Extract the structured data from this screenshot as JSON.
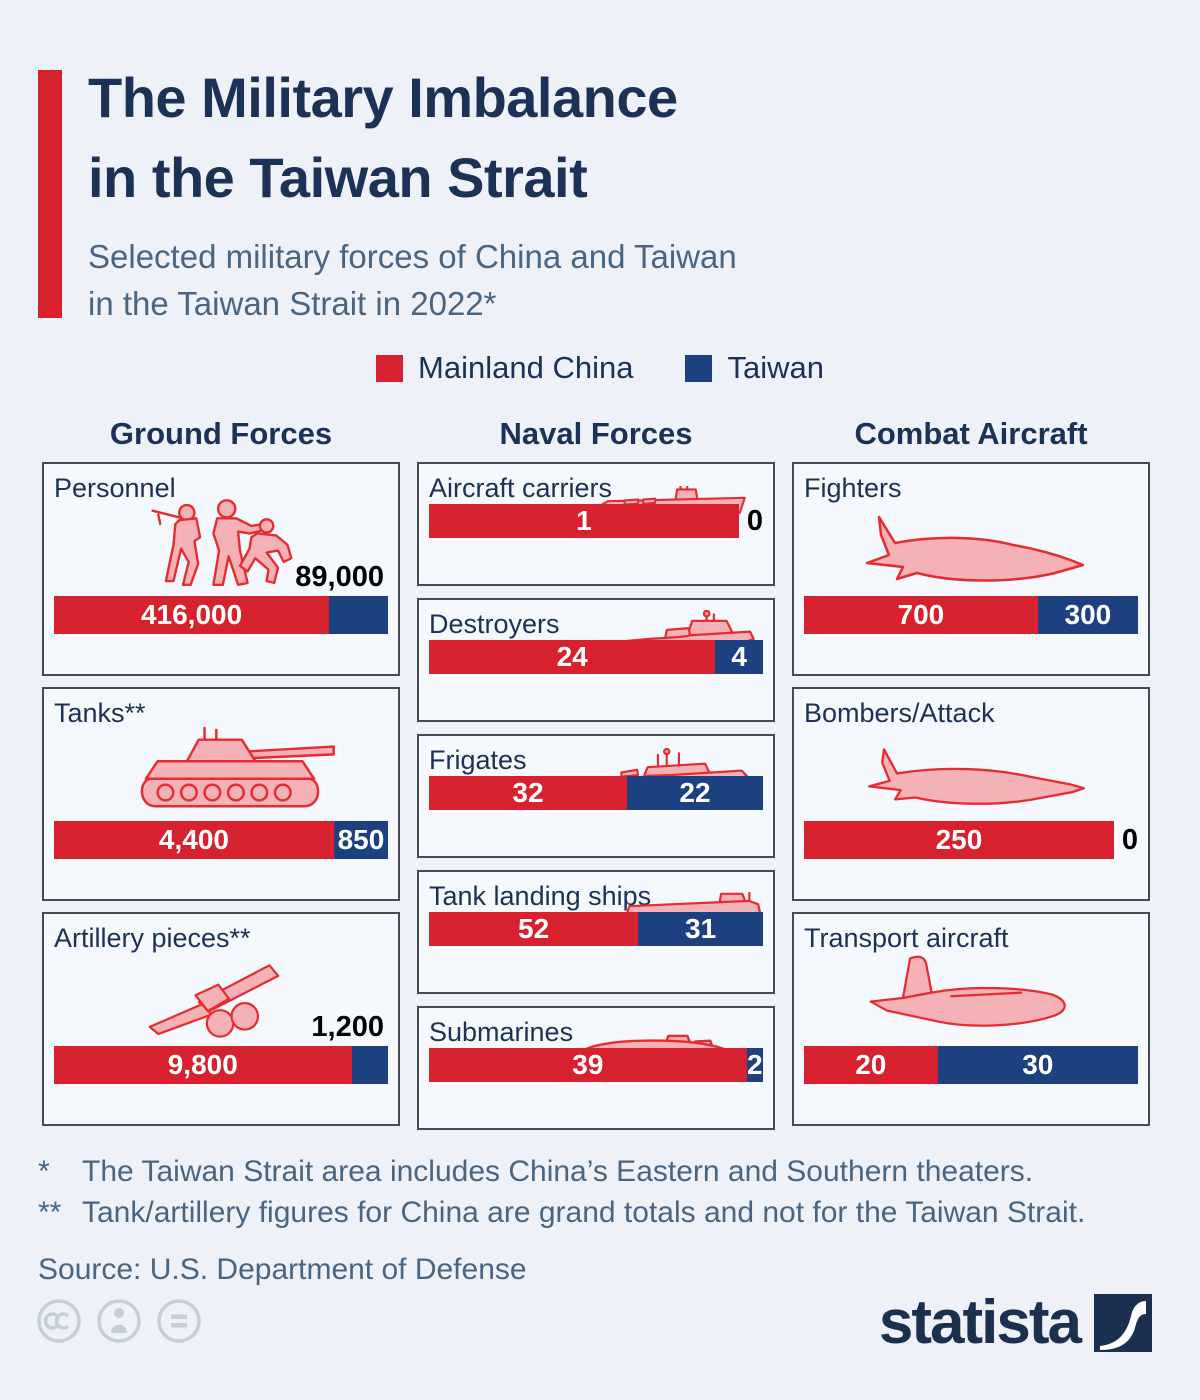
{
  "title": {
    "line1": "The Military Imbalance",
    "line2": "in the Taiwan Strait"
  },
  "subtitle": {
    "line1": "Selected military forces of China and Taiwan",
    "line2": "in the Taiwan Strait in 2022*"
  },
  "legend": {
    "items": [
      {
        "label": "Mainland China",
        "series": "china",
        "color": "#d7212e"
      },
      {
        "label": "Taiwan",
        "series": "taiwan",
        "color": "#1c4080"
      }
    ]
  },
  "colors": {
    "background": "#eef2f8",
    "panel": "#f5f8fc",
    "panel_border": "#454b55",
    "china": "#d7212e",
    "taiwan": "#1c4080",
    "title": "#1b3155",
    "subtitle": "#4a6582",
    "value": "#000000",
    "icon_fill": "#f5b2b6",
    "icon_stroke": "#e62b33",
    "cc_gray": "#c5cfd9",
    "brand": "#1b2f4e"
  },
  "chart_data": {
    "type": "bar",
    "layout": "horizontal proportional stacked bars, one per weapon category, grouped in three columns",
    "series_names": [
      "Mainland China",
      "Taiwan"
    ],
    "groups": [
      {
        "header": "Ground Forces",
        "items": [
          {
            "label": "Personnel",
            "icon": "soldiers-icon",
            "values": {
              "china": 416000,
              "taiwan": 89000
            },
            "display": {
              "china": "416,000",
              "taiwan": "89,000"
            },
            "taiwan_label_position": "above"
          },
          {
            "label": "Tanks**",
            "icon": "tank-icon",
            "values": {
              "china": 4400,
              "taiwan": 850
            },
            "display": {
              "china": "4,400",
              "taiwan": "850"
            },
            "taiwan_label_position": "inside"
          },
          {
            "label": "Artillery pieces**",
            "icon": "artillery-icon",
            "values": {
              "china": 9800,
              "taiwan": 1200
            },
            "display": {
              "china": "9,800",
              "taiwan": "1,200"
            },
            "taiwan_label_position": "above"
          }
        ]
      },
      {
        "header": "Naval Forces",
        "items": [
          {
            "label": "Aircraft carriers",
            "icon": "aircraft-carrier-icon",
            "values": {
              "china": 1,
              "taiwan": 0
            },
            "display": {
              "china": "1",
              "taiwan": "0"
            },
            "taiwan_label_position": "outside"
          },
          {
            "label": "Destroyers",
            "icon": "destroyer-icon",
            "values": {
              "china": 24,
              "taiwan": 4
            },
            "display": {
              "china": "24",
              "taiwan": "4"
            },
            "taiwan_label_position": "inside"
          },
          {
            "label": "Frigates",
            "icon": "frigate-icon",
            "values": {
              "china": 32,
              "taiwan": 22
            },
            "display": {
              "china": "32",
              "taiwan": "22"
            },
            "taiwan_label_position": "inside"
          },
          {
            "label": "Tank landing ships",
            "icon": "tank-landing-ship-icon",
            "values": {
              "china": 52,
              "taiwan": 31
            },
            "display": {
              "china": "52",
              "taiwan": "31"
            },
            "taiwan_label_position": "inside"
          },
          {
            "label": "Submarines",
            "icon": "submarine-icon",
            "values": {
              "china": 39,
              "taiwan": 2
            },
            "display": {
              "china": "39",
              "taiwan": "2"
            },
            "taiwan_label_position": "inside"
          }
        ]
      },
      {
        "header": "Combat Aircraft",
        "items": [
          {
            "label": "Fighters",
            "icon": "fighter-jet-icon",
            "values": {
              "china": 700,
              "taiwan": 300
            },
            "display": {
              "china": "700",
              "taiwan": "300"
            },
            "taiwan_label_position": "inside"
          },
          {
            "label": "Bombers/Attack",
            "icon": "bomber-icon",
            "values": {
              "china": 250,
              "taiwan": 0
            },
            "display": {
              "china": "250",
              "taiwan": "0"
            },
            "taiwan_label_position": "outside"
          },
          {
            "label": "Transport aircraft",
            "icon": "transport-aircraft-icon",
            "values": {
              "china": 20,
              "taiwan": 30
            },
            "display": {
              "china": "20",
              "taiwan": "30"
            },
            "taiwan_label_position": "inside"
          }
        ]
      }
    ]
  },
  "footnotes": {
    "marker1": "*",
    "text1": "The Taiwan Strait area includes China’s Eastern and Southern theaters.",
    "marker2": "**",
    "text2": "Tank/artillery figures for China are grand totals and not for the Taiwan Strait.",
    "source": "Source: U.S. Department of Defense"
  },
  "footer": {
    "brand": "statista"
  }
}
